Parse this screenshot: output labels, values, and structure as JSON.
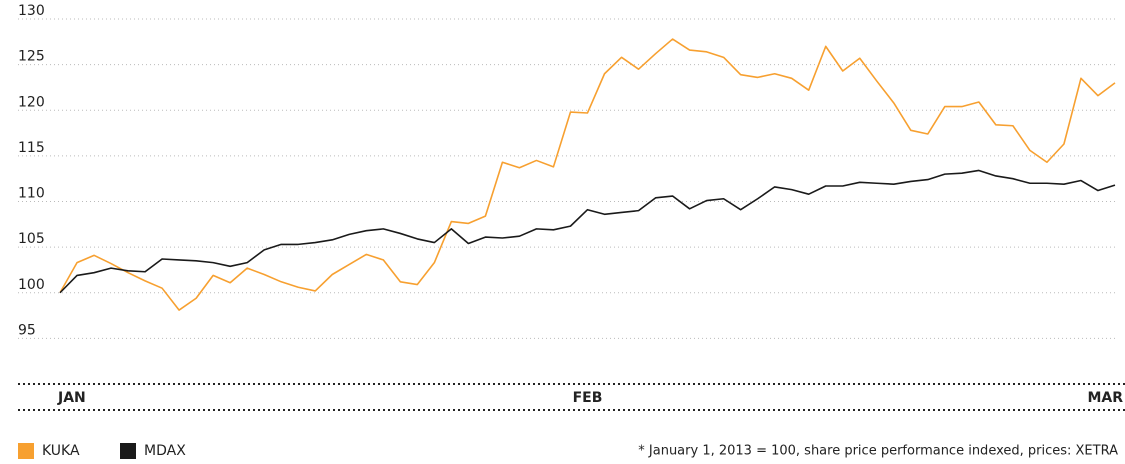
{
  "chart_data": {
    "type": "line",
    "x": [
      0,
      1,
      2,
      3,
      4,
      5,
      6,
      7,
      8,
      9,
      10,
      11,
      12,
      13,
      14,
      15,
      16,
      17,
      18,
      19,
      20,
      21,
      22,
      23,
      24,
      25,
      26,
      27,
      28,
      29,
      30,
      31,
      32,
      33,
      34,
      35,
      36,
      37,
      38,
      39,
      40,
      41,
      42,
      43,
      44,
      45,
      46,
      47,
      48,
      49,
      50,
      51,
      52,
      53,
      54,
      55,
      56,
      57,
      58,
      59,
      60,
      61,
      62
    ],
    "xlim": [
      0,
      62
    ],
    "xticks": [
      {
        "value": 0,
        "label": "JAN"
      },
      {
        "value": 31,
        "label": "FEB"
      },
      {
        "value": 62,
        "label": "MAR"
      }
    ],
    "ylim": [
      90,
      130
    ],
    "yticks": [
      95,
      100,
      105,
      110,
      115,
      120,
      125,
      130
    ],
    "grid": true,
    "legend": "bottom-left",
    "note": "* January 1, 2013 = 100, share price performance indexed, prices: XETRA",
    "series": [
      {
        "name": "KUKA",
        "color": "#f7a030",
        "values": [
          100,
          103.3,
          104.1,
          103.2,
          102.2,
          101.3,
          100.5,
          98.1,
          99.4,
          101.9,
          101.1,
          102.7,
          102.0,
          101.2,
          100.6,
          100.2,
          102.0,
          103.1,
          104.2,
          103.6,
          101.2,
          100.9,
          103.3,
          107.8,
          107.6,
          108.4,
          114.3,
          113.7,
          114.5,
          113.8,
          119.8,
          119.7,
          124.0,
          125.8,
          124.5,
          126.2,
          127.8,
          126.6,
          126.4,
          125.8,
          123.9,
          123.6,
          124.0,
          123.5,
          122.2,
          127.0,
          124.3,
          125.7,
          123.2,
          120.8,
          117.8,
          117.4,
          120.4,
          120.4,
          120.9,
          118.4,
          118.3,
          115.6,
          114.3,
          116.3,
          123.5,
          121.6,
          123.0
        ]
      },
      {
        "name": "MDAX",
        "color": "#1a1a1a",
        "values": [
          100,
          101.9,
          102.2,
          102.7,
          102.4,
          102.3,
          103.7,
          103.6,
          103.5,
          103.3,
          102.9,
          103.3,
          104.7,
          105.3,
          105.3,
          105.5,
          105.8,
          106.4,
          106.8,
          107.0,
          106.5,
          105.9,
          105.5,
          107.0,
          105.4,
          106.1,
          106.0,
          106.2,
          107.0,
          106.9,
          107.3,
          109.1,
          108.6,
          108.8,
          109.0,
          110.4,
          110.6,
          109.2,
          110.1,
          110.3,
          109.1,
          110.3,
          111.6,
          111.3,
          110.8,
          111.7,
          111.7,
          112.1,
          112.0,
          111.9,
          112.2,
          112.4,
          113.0,
          113.1,
          113.4,
          112.8,
          112.5,
          112.0,
          112.0,
          111.9,
          112.3,
          111.2,
          111.8
        ]
      }
    ]
  }
}
